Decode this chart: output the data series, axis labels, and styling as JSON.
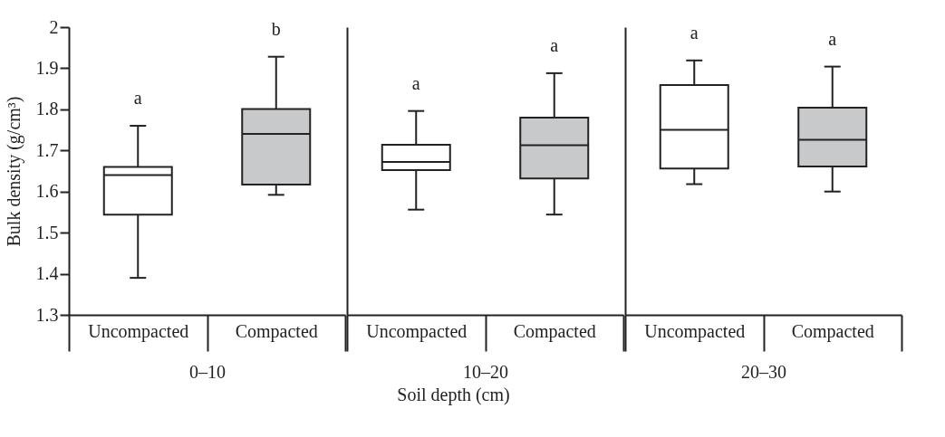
{
  "chart_data": {
    "type": "box",
    "xlabel": "Soil depth (cm)",
    "ylabel": "Bulk density (g/cm³)",
    "categories": [
      "0–10",
      "10–20",
      "20–30"
    ],
    "ylim": [
      1.3,
      2
    ],
    "yticks": [
      1.3,
      1.4,
      1.5,
      1.6,
      1.7,
      1.8,
      1.9,
      2
    ],
    "grid": false,
    "legend": "bottom",
    "series": [
      {
        "name": "Uncompacted",
        "color": "#ffffff",
        "boxes": [
          {
            "low": 1.39,
            "q1": 1.544,
            "median": 1.64,
            "q3": 1.66,
            "high": 1.76
          },
          {
            "low": 1.556,
            "q1": 1.652,
            "median": 1.672,
            "q3": 1.714,
            "high": 1.796
          },
          {
            "low": 1.618,
            "q1": 1.656,
            "median": 1.75,
            "q3": 1.859,
            "high": 1.919
          }
        ]
      },
      {
        "name": "Compacted",
        "color": "#c8c9ca",
        "boxes": [
          {
            "low": 1.592,
            "q1": 1.617,
            "median": 1.74,
            "q3": 1.801,
            "high": 1.928
          },
          {
            "low": 1.544,
            "q1": 1.632,
            "median": 1.713,
            "q3": 1.78,
            "high": 1.888
          },
          {
            "low": 1.6,
            "q1": 1.661,
            "median": 1.726,
            "q3": 1.804,
            "high": 1.904
          }
        ]
      }
    ],
    "annotations": [
      "a",
      "b",
      "a",
      "a",
      "a",
      "a"
    ]
  }
}
